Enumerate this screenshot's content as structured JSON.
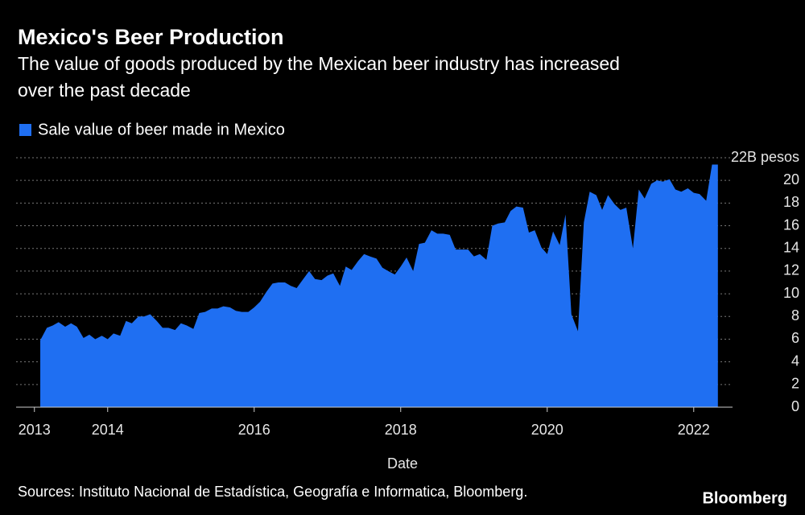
{
  "chart_data": {
    "type": "area",
    "title": "Mexico's Beer Production",
    "subtitle": [
      "The value of goods produced by the Mexican beer industry has increased",
      "over the past decade"
    ],
    "x_label": "Date",
    "source": "Sources: Instituto Nacional de Estadística, Geografía e Informatica, Bloomberg.",
    "brand": "Bloomberg",
    "xlim": [
      2012.75,
      2022.53
    ],
    "xticks": [
      2013,
      2014,
      2016,
      2018,
      2020,
      2022
    ],
    "ylim": [
      0,
      22
    ],
    "yticks": [
      0,
      2,
      4,
      6,
      8,
      10,
      12,
      14,
      16,
      18,
      20,
      {
        "value": 22,
        "label": "22B pesos"
      }
    ],
    "grid": true,
    "x": [
      2013.08,
      2013.17,
      2013.25,
      2013.33,
      2013.42,
      2013.5,
      2013.58,
      2013.67,
      2013.75,
      2013.83,
      2013.92,
      2014,
      2014.08,
      2014.17,
      2014.25,
      2014.33,
      2014.42,
      2014.5,
      2014.58,
      2014.67,
      2014.75,
      2014.83,
      2014.92,
      2015,
      2015.08,
      2015.17,
      2015.25,
      2015.33,
      2015.42,
      2015.5,
      2015.58,
      2015.67,
      2015.75,
      2015.83,
      2015.92,
      2016,
      2016.08,
      2016.17,
      2016.25,
      2016.33,
      2016.42,
      2016.5,
      2016.58,
      2016.67,
      2016.75,
      2016.83,
      2016.92,
      2017,
      2017.08,
      2017.17,
      2017.25,
      2017.33,
      2017.42,
      2017.5,
      2017.58,
      2017.67,
      2017.75,
      2017.83,
      2017.92,
      2018,
      2018.08,
      2018.17,
      2018.25,
      2018.33,
      2018.42,
      2018.5,
      2018.58,
      2018.67,
      2018.75,
      2018.83,
      2018.92,
      2019,
      2019.08,
      2019.17,
      2019.25,
      2019.33,
      2019.42,
      2019.5,
      2019.58,
      2019.67,
      2019.75,
      2019.83,
      2019.92,
      2020,
      2020.08,
      2020.17,
      2020.25,
      2020.33,
      2020.42,
      2020.5,
      2020.58,
      2020.67,
      2020.75,
      2020.83,
      2020.92,
      2021,
      2021.08,
      2021.17,
      2021.25,
      2021.33,
      2021.42,
      2021.5,
      2021.58,
      2021.67,
      2021.75,
      2021.83,
      2021.92,
      2022,
      2022.08,
      2022.17,
      2022.25,
      2022.33
    ],
    "series": [
      {
        "name": "Sale value of beer made in Mexico",
        "color": "#1f6ff2",
        "values": [
          5.9,
          7.0,
          7.2,
          7.5,
          7.1,
          7.4,
          7.1,
          6.1,
          6.4,
          6.0,
          6.3,
          6.0,
          6.5,
          6.3,
          7.6,
          7.4,
          8.0,
          8.0,
          8.2,
          7.6,
          7.0,
          7.0,
          6.8,
          7.4,
          7.2,
          6.9,
          8.3,
          8.4,
          8.7,
          8.7,
          8.9,
          8.8,
          8.5,
          8.4,
          8.4,
          8.8,
          9.3,
          10.2,
          10.9,
          11.0,
          11.0,
          10.7,
          10.5,
          11.3,
          12.0,
          11.3,
          11.2,
          11.6,
          11.8,
          10.7,
          12.4,
          12.1,
          12.9,
          13.5,
          13.3,
          13.1,
          12.3,
          12.0,
          11.7,
          12.4,
          13.2,
          12.0,
          14.4,
          14.5,
          15.6,
          15.3,
          15.3,
          15.2,
          13.9,
          13.9,
          13.9,
          13.3,
          13.5,
          13.0,
          16.0,
          16.2,
          16.3,
          17.3,
          17.7,
          17.6,
          15.4,
          15.6,
          14.1,
          13.5,
          15.5,
          14.3,
          17.0,
          8.2,
          6.7,
          16.3,
          19.0,
          18.7,
          17.4,
          18.7,
          17.9,
          17.4,
          17.6,
          14.0,
          19.2,
          18.4,
          19.7,
          20.0,
          19.9,
          20.1,
          19.2,
          19.0,
          19.3,
          18.9,
          18.8,
          18.2,
          21.4,
          21.4
        ]
      }
    ]
  }
}
